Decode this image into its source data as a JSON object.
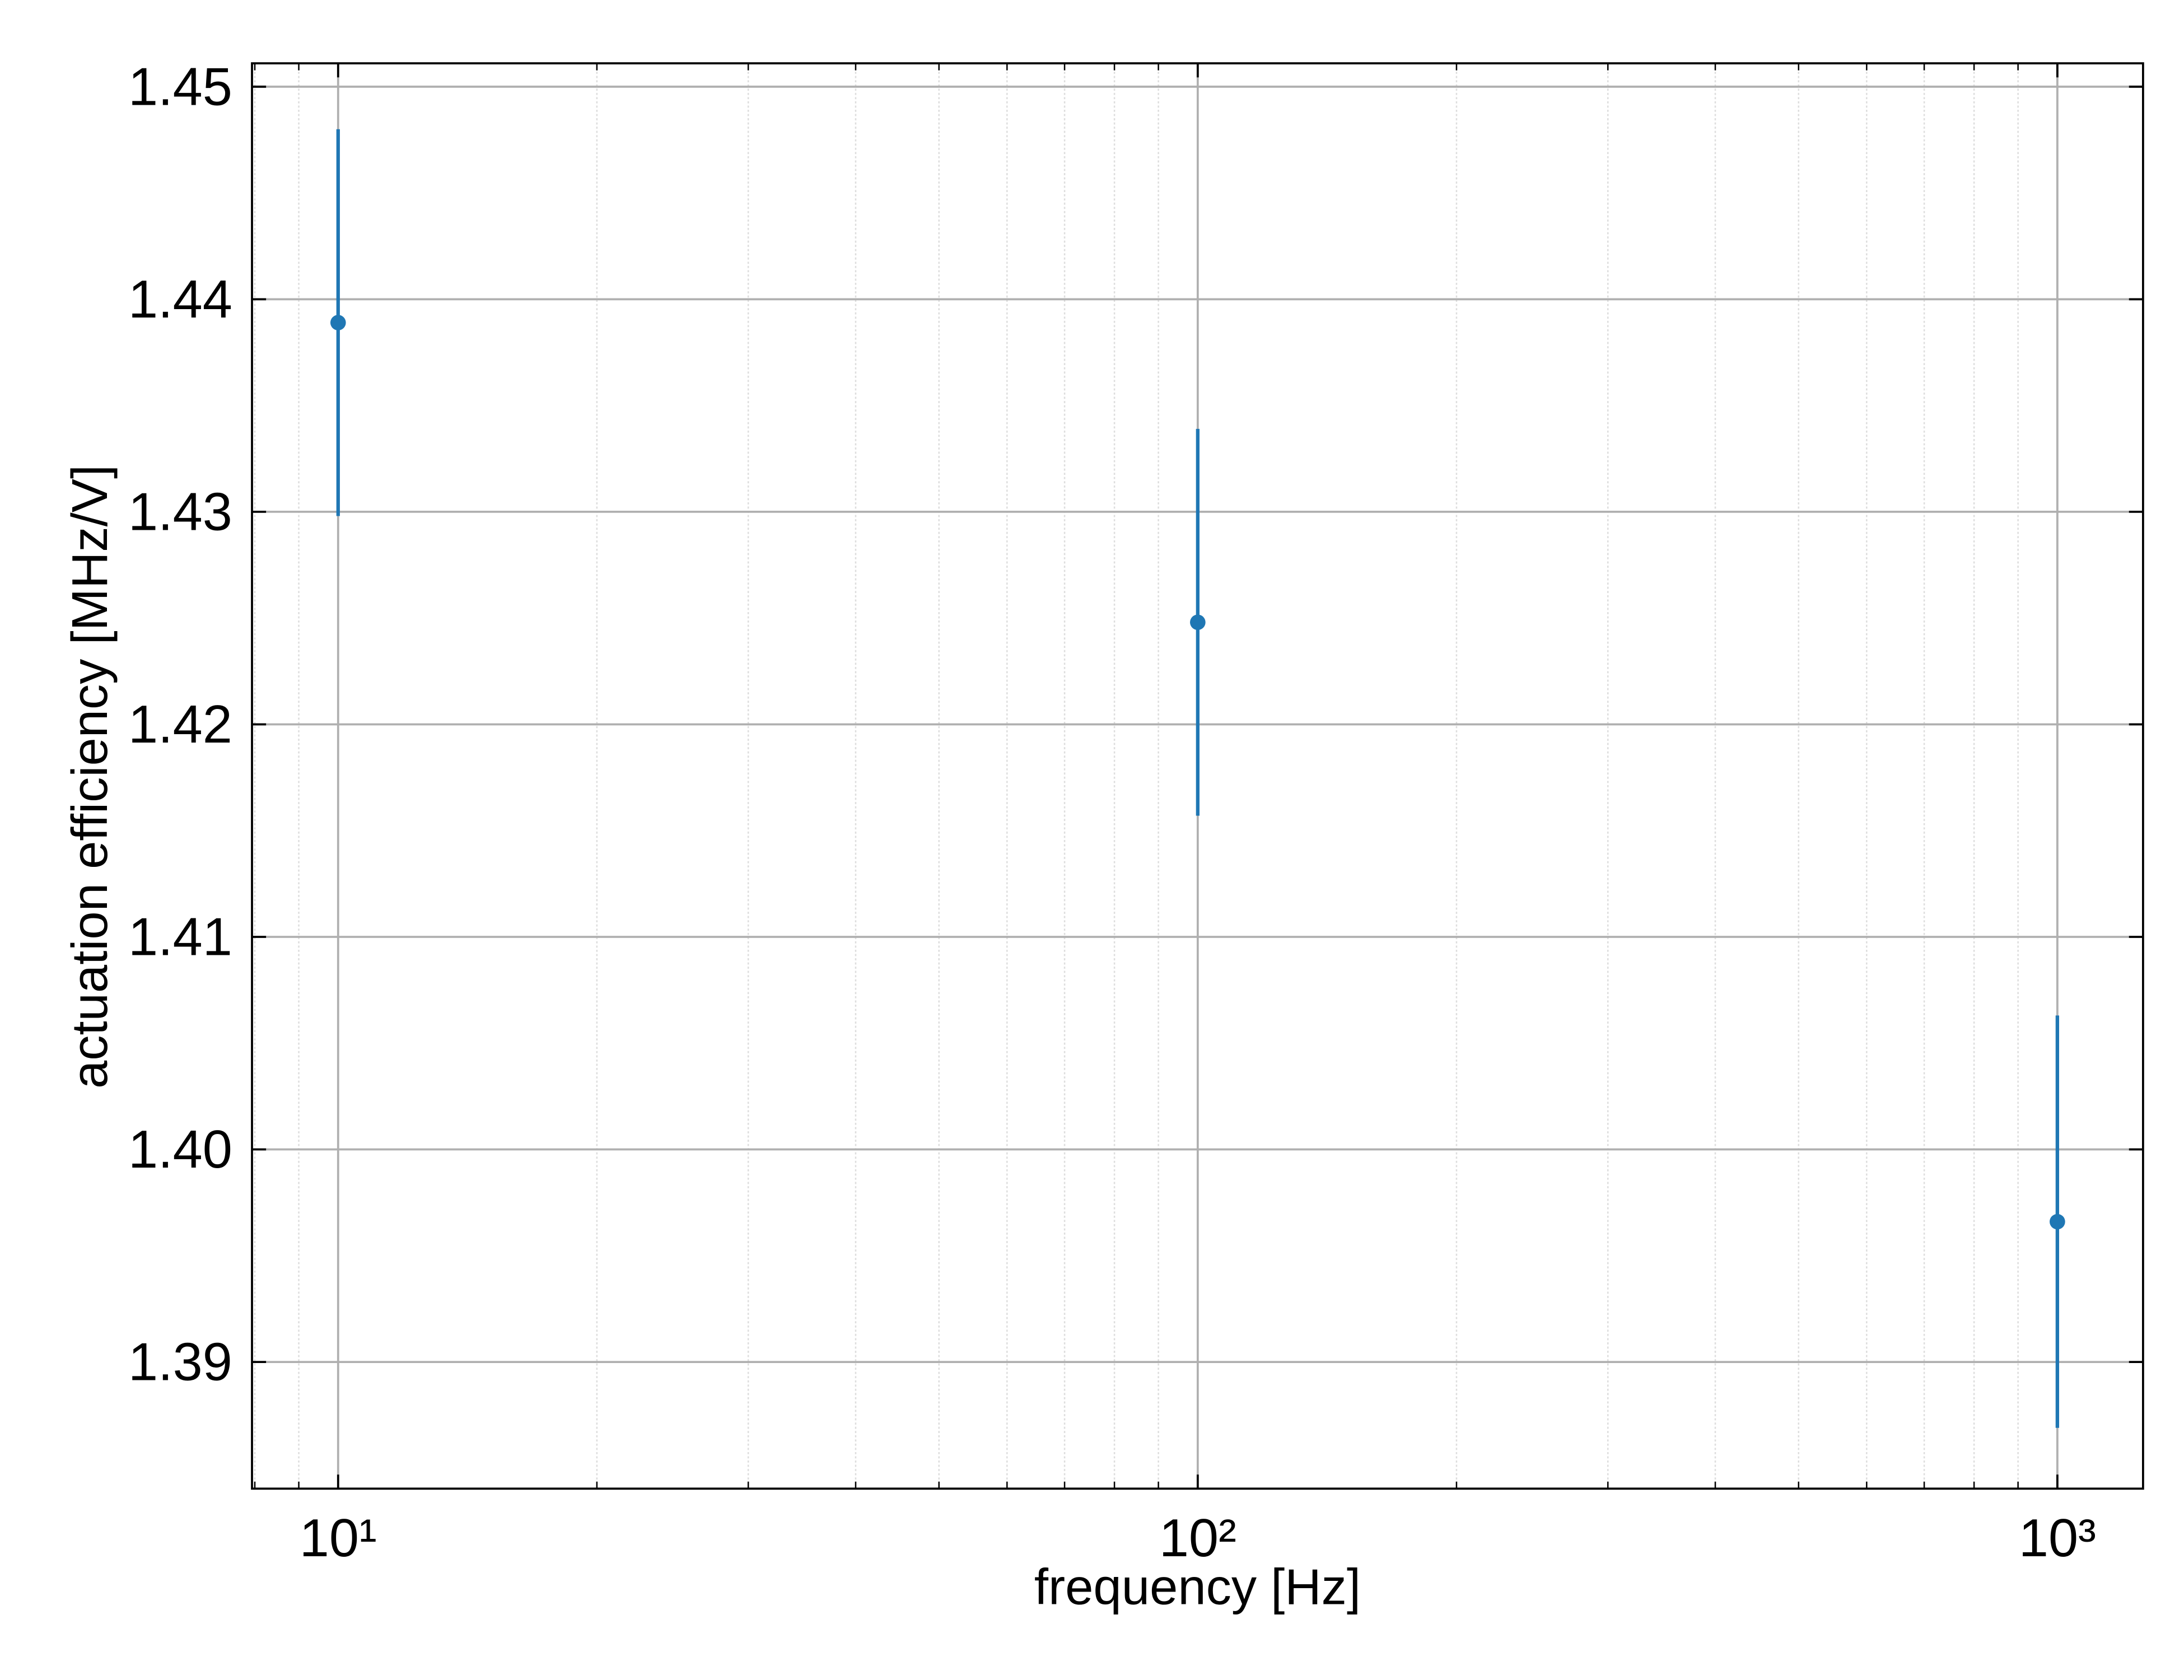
{
  "chart_data": {
    "type": "errorbar",
    "xlabel": "frequency [Hz]",
    "ylabel": "actuation efficiency [MHz/V]",
    "x": [
      10,
      100,
      1000
    ],
    "values": [
      1.4389,
      1.4248,
      1.3966
    ],
    "errors": [
      0.0091,
      0.0091,
      0.0097
    ],
    "color": "#1f77b4",
    "xscale": "log",
    "xlim": [
      7.94,
      1258
    ],
    "ylim": [
      1.38404,
      1.4511
    ],
    "xticks": [
      {
        "value": 10,
        "label": "10¹"
      },
      {
        "value": 100,
        "label": "10²"
      },
      {
        "value": 1000,
        "label": "10³"
      }
    ],
    "yticks": [
      1.39,
      {
        "value": 1.4,
        "label": "1.40"
      },
      1.41,
      1.42,
      1.43,
      1.44,
      1.45
    ],
    "grid": true,
    "minor_grid": true
  }
}
